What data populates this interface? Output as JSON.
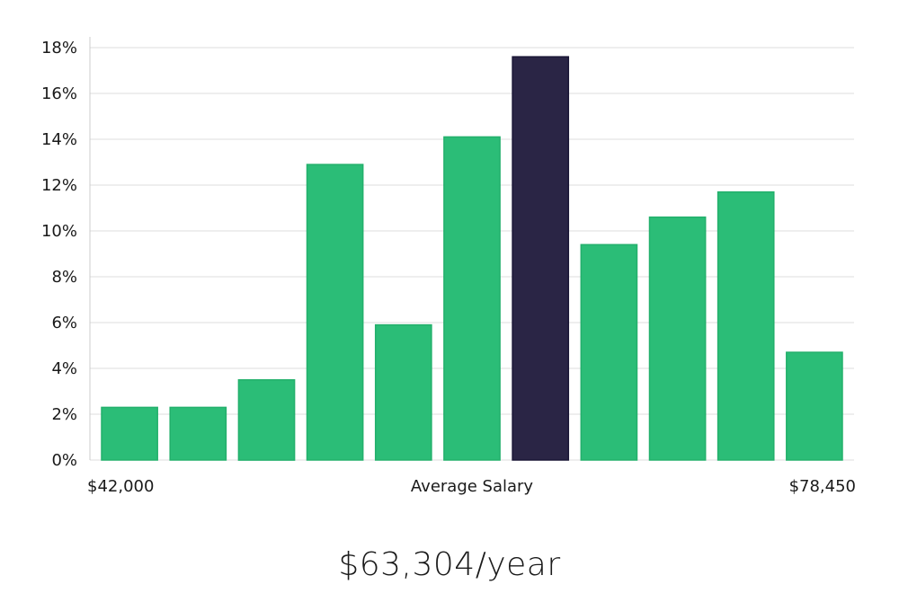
{
  "chart_data": {
    "type": "bar",
    "title": "",
    "xlabel": "Average Salary",
    "ylabel": "",
    "x_range_labels": {
      "min": "$42,000",
      "max": "$78,450"
    },
    "values": [
      2.3,
      2.3,
      3.5,
      12.9,
      5.9,
      14.1,
      17.6,
      9.4,
      10.6,
      11.7,
      4.7
    ],
    "highlight_index": 6,
    "ylim": [
      0,
      18
    ],
    "yticks": [
      0,
      2,
      4,
      6,
      8,
      10,
      12,
      14,
      16,
      18
    ],
    "ytick_labels": [
      "0%",
      "2%",
      "4%",
      "6%",
      "8%",
      "10%",
      "12%",
      "14%",
      "16%",
      "18%"
    ],
    "grid": true,
    "colors": {
      "bar": "#2bbd77",
      "bar_border": "#23b06c",
      "highlight": "#2a2545",
      "highlight_border": "#1a1636",
      "grid": "#dddddd",
      "axis": "#cccccc"
    }
  },
  "summary": {
    "salary_text": "$63,304/year"
  }
}
